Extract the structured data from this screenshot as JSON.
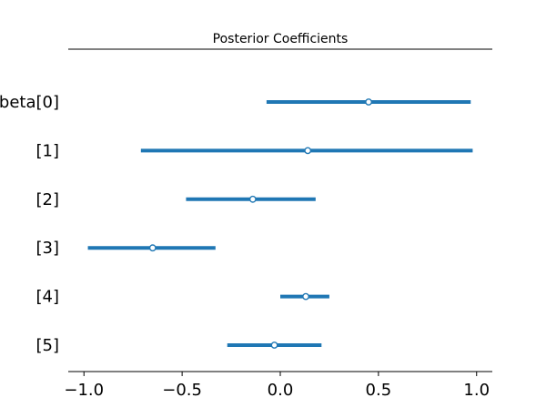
{
  "chart_data": {
    "type": "forest",
    "title": "Posterior Coefficients",
    "categories": [
      "beta[0]",
      "[1]",
      "[2]",
      "[3]",
      "[4]",
      "[5]"
    ],
    "series": [
      {
        "color": "#1f77b4",
        "means": [
          0.45,
          0.14,
          -0.14,
          -0.65,
          0.13,
          -0.03
        ],
        "lower": [
          -0.07,
          -0.71,
          -0.48,
          -0.98,
          0.0,
          -0.27
        ],
        "upper": [
          0.97,
          0.98,
          0.18,
          -0.33,
          0.25,
          0.21
        ]
      }
    ],
    "xticks": [
      -1.0,
      -0.5,
      0.0,
      0.5,
      1.0
    ],
    "xtick_labels": [
      "−1.0",
      "−0.5",
      "0.0",
      "0.5",
      "1.0"
    ],
    "xlim": [
      -1.08,
      1.08
    ],
    "xlabel": "",
    "ylabel": "",
    "grid": false
  }
}
